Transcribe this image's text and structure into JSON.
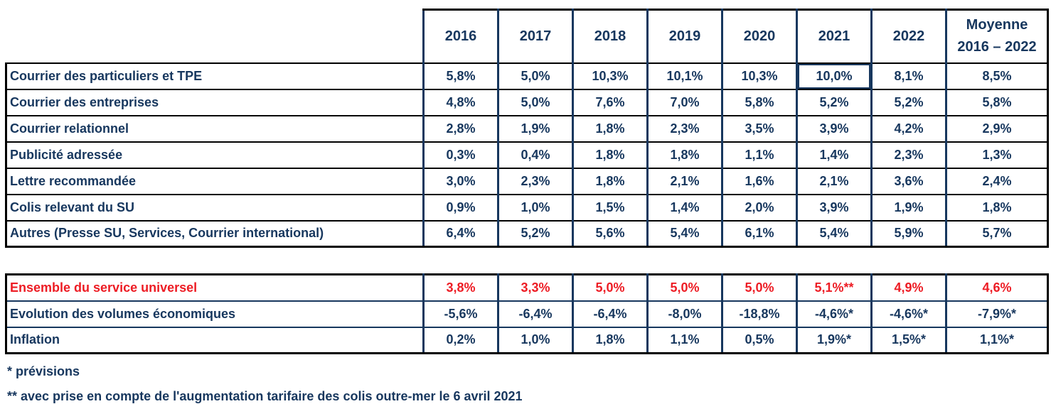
{
  "colors": {
    "text_navy": "#17375E",
    "text_red": "#ED1C24",
    "border_black": "#000000",
    "border_navy": "#17375E",
    "background": "#FFFFFF"
  },
  "table": {
    "columns": [
      "2016",
      "2017",
      "2018",
      "2019",
      "2020",
      "2021",
      "2022",
      "Moyenne\n2016 – 2022"
    ],
    "main_rows": [
      {
        "label": "Courrier des particuliers et TPE",
        "values": [
          "5,8%",
          "5,0%",
          "10,3%",
          "10,1%",
          "10,3%",
          "10,0%",
          "8,1%",
          "8,5%"
        ],
        "selected_col": 5
      },
      {
        "label": "Courrier des entreprises",
        "values": [
          "4,8%",
          "5,0%",
          "7,6%",
          "7,0%",
          "5,8%",
          "5,2%",
          "5,2%",
          "5,8%"
        ]
      },
      {
        "label": "Courrier relationnel",
        "values": [
          "2,8%",
          "1,9%",
          "1,8%",
          "2,3%",
          "3,5%",
          "3,9%",
          "4,2%",
          "2,9%"
        ]
      },
      {
        "label": "Publicité adressée",
        "values": [
          "0,3%",
          "0,4%",
          "1,8%",
          "1,8%",
          "1,1%",
          "1,4%",
          "2,3%",
          "1,3%"
        ]
      },
      {
        "label": "Lettre recommandée",
        "values": [
          "3,0%",
          "2,3%",
          "1,8%",
          "2,1%",
          "1,6%",
          "2,1%",
          "3,6%",
          "2,4%"
        ]
      },
      {
        "label": "Colis relevant du SU",
        "values": [
          "0,9%",
          "1,0%",
          "1,5%",
          "1,4%",
          "2,0%",
          "3,9%",
          "1,9%",
          "1,8%"
        ]
      },
      {
        "label": "Autres (Presse SU, Services, Courrier international)",
        "values": [
          "6,4%",
          "5,2%",
          "5,6%",
          "5,4%",
          "6,1%",
          "5,4%",
          "5,9%",
          "5,7%"
        ]
      }
    ],
    "summary_rows": [
      {
        "label": "Ensemble du service universel",
        "values": [
          "3,8%",
          "3,3%",
          "5,0%",
          "5,0%",
          "5,0%",
          "5,1%**",
          "4,9%",
          "4,6%"
        ],
        "style": "red"
      },
      {
        "label": "Evolution des volumes économiques",
        "values": [
          "-5,6%",
          "-6,4%",
          "-6,4%",
          "-8,0%",
          "-18,8%",
          "-4,6%*",
          "-4,6%*",
          "-7,9%*"
        ]
      },
      {
        "label": "Inflation",
        "values": [
          "0,2%",
          "1,0%",
          "1,8%",
          "1,1%",
          "0,5%",
          "1,9%*",
          "1,5%*",
          "1,1%*"
        ]
      }
    ]
  },
  "footnotes": {
    "previsions": "* prévisions",
    "tarifaire": "** avec prise en compte de l'augmentation tarifaire des colis outre-mer le 6 avril 2021"
  }
}
